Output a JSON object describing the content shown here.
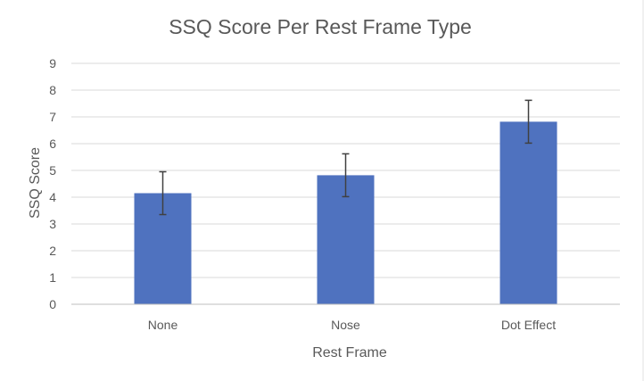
{
  "chart_data": {
    "type": "bar",
    "title": "SSQ Score Per Rest Frame Type",
    "xlabel": "Rest Frame",
    "ylabel": "SSQ Score",
    "categories": [
      "None",
      "Nose",
      "Dot Effect"
    ],
    "values": [
      4.15,
      4.82,
      6.82
    ],
    "error_bars": [
      0.8,
      0.8,
      0.8
    ],
    "ylim": [
      0,
      9
    ],
    "yticks": [
      0,
      1,
      2,
      3,
      4,
      5,
      6,
      7,
      8,
      9
    ],
    "grid": true,
    "legend": "none",
    "bar_color": "#4F72BF",
    "error_color": "#404040",
    "grid_color": "#D9D9D9",
    "axis_color": "#BFBFBF"
  }
}
